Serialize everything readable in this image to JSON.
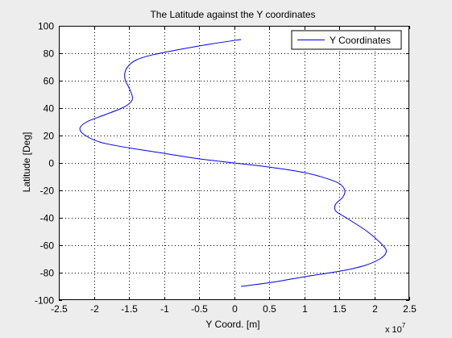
{
  "chart_data": {
    "type": "line",
    "title": "The Latitude against the Y coordinates",
    "xlabel": "Y Coord. [m]",
    "ylabel": "Latitude [Deg]",
    "x_multiplier_label": "x 10",
    "x_multiplier_exponent": "7",
    "xlim": [
      -2.5,
      2.5
    ],
    "ylim": [
      -100,
      100
    ],
    "xticks": [
      -2.5,
      -2,
      -1.5,
      -1,
      -0.5,
      0,
      0.5,
      1,
      1.5,
      2,
      2.5
    ],
    "yticks": [
      -100,
      -80,
      -60,
      -40,
      -20,
      0,
      20,
      40,
      60,
      80,
      100
    ],
    "xtick_labels": [
      "-2.5",
      "-2",
      "-1.5",
      "-1",
      "-0.5",
      "0",
      "0.5",
      "1",
      "1.5",
      "2",
      "2.5"
    ],
    "ytick_labels": [
      "-100",
      "-80",
      "-60",
      "-40",
      "-20",
      "0",
      "20",
      "40",
      "60",
      "80",
      "100"
    ],
    "grid": true,
    "grid_style": "dotted",
    "legend_position": "top-right",
    "series": [
      {
        "name": "Y Coordinates",
        "color": "#0000ff",
        "x": [
          0.1,
          -0.3,
          -0.75,
          -1.15,
          -1.4,
          -1.52,
          -1.56,
          -1.55,
          -1.5,
          -1.45,
          -1.48,
          -1.6,
          -1.85,
          -2.1,
          -2.2,
          -2.12,
          -1.9,
          -1.5,
          -1.0,
          -0.5,
          0.0,
          0.5,
          1.0,
          1.3,
          1.5,
          1.58,
          1.55,
          1.45,
          1.45,
          1.6,
          1.9,
          2.12,
          2.17,
          2.08,
          1.85,
          1.5,
          1.0,
          0.55,
          0.1
        ],
        "y": [
          90,
          87,
          83,
          79,
          75,
          70,
          65,
          60,
          55,
          48,
          44,
          40,
          35,
          30,
          25,
          20,
          15,
          11,
          7,
          3,
          0,
          -3,
          -7,
          -11,
          -15,
          -20,
          -25,
          -30,
          -35,
          -40,
          -50,
          -60,
          -65,
          -70,
          -75,
          -79,
          -83,
          -87,
          -90
        ]
      }
    ]
  }
}
